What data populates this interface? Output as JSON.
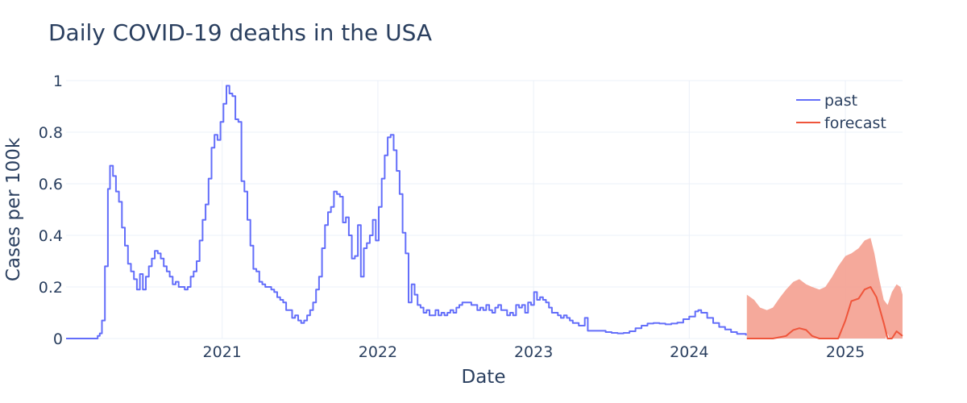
{
  "chart_data": {
    "type": "line",
    "title": "Daily COVID-19 deaths in the USA",
    "xlabel": "Date",
    "ylabel": "Cases per 100k",
    "xlim": [
      "2020-01-01",
      "2025-05-15"
    ],
    "ylim": [
      0,
      1
    ],
    "x_ticks": [
      "2021",
      "2022",
      "2023",
      "2024",
      "2025"
    ],
    "y_ticks": [
      "0",
      "0.2",
      "0.4",
      "0.6",
      "0.8",
      "1"
    ],
    "grid": true,
    "legend_position": "top-right",
    "colors": {
      "past": "#636efa",
      "forecast": "#ef553b",
      "forecast_band": "#f4a090"
    },
    "series": [
      {
        "name": "past",
        "color": "#636efa",
        "points": [
          [
            "2020-01-01",
            0
          ],
          [
            "2020-03-10",
            0
          ],
          [
            "2020-03-15",
            0.01
          ],
          [
            "2020-03-20",
            0.02
          ],
          [
            "2020-03-25",
            0.07
          ],
          [
            "2020-04-01",
            0.28
          ],
          [
            "2020-04-08",
            0.58
          ],
          [
            "2020-04-13",
            0.67
          ],
          [
            "2020-04-20",
            0.63
          ],
          [
            "2020-04-27",
            0.57
          ],
          [
            "2020-05-04",
            0.53
          ],
          [
            "2020-05-11",
            0.43
          ],
          [
            "2020-05-18",
            0.36
          ],
          [
            "2020-05-25",
            0.29
          ],
          [
            "2020-06-01",
            0.26
          ],
          [
            "2020-06-08",
            0.23
          ],
          [
            "2020-06-15",
            0.19
          ],
          [
            "2020-06-22",
            0.25
          ],
          [
            "2020-06-29",
            0.19
          ],
          [
            "2020-07-06",
            0.24
          ],
          [
            "2020-07-13",
            0.28
          ],
          [
            "2020-07-20",
            0.31
          ],
          [
            "2020-07-27",
            0.34
          ],
          [
            "2020-08-03",
            0.33
          ],
          [
            "2020-08-10",
            0.31
          ],
          [
            "2020-08-17",
            0.28
          ],
          [
            "2020-08-24",
            0.26
          ],
          [
            "2020-08-31",
            0.24
          ],
          [
            "2020-09-07",
            0.21
          ],
          [
            "2020-09-14",
            0.22
          ],
          [
            "2020-09-21",
            0.2
          ],
          [
            "2020-09-28",
            0.2
          ],
          [
            "2020-10-05",
            0.19
          ],
          [
            "2020-10-12",
            0.2
          ],
          [
            "2020-10-19",
            0.24
          ],
          [
            "2020-10-26",
            0.26
          ],
          [
            "2020-11-02",
            0.3
          ],
          [
            "2020-11-09",
            0.38
          ],
          [
            "2020-11-16",
            0.46
          ],
          [
            "2020-11-23",
            0.52
          ],
          [
            "2020-11-30",
            0.62
          ],
          [
            "2020-12-07",
            0.74
          ],
          [
            "2020-12-14",
            0.79
          ],
          [
            "2020-12-21",
            0.77
          ],
          [
            "2020-12-28",
            0.84
          ],
          [
            "2021-01-04",
            0.91
          ],
          [
            "2021-01-11",
            0.98
          ],
          [
            "2021-01-18",
            0.95
          ],
          [
            "2021-01-25",
            0.94
          ],
          [
            "2021-02-01",
            0.85
          ],
          [
            "2021-02-08",
            0.84
          ],
          [
            "2021-02-15",
            0.61
          ],
          [
            "2021-02-22",
            0.57
          ],
          [
            "2021-03-01",
            0.46
          ],
          [
            "2021-03-08",
            0.36
          ],
          [
            "2021-03-15",
            0.27
          ],
          [
            "2021-03-22",
            0.26
          ],
          [
            "2021-03-29",
            0.22
          ],
          [
            "2021-04-05",
            0.21
          ],
          [
            "2021-04-12",
            0.2
          ],
          [
            "2021-04-19",
            0.2
          ],
          [
            "2021-04-26",
            0.19
          ],
          [
            "2021-05-03",
            0.18
          ],
          [
            "2021-05-10",
            0.16
          ],
          [
            "2021-05-17",
            0.15
          ],
          [
            "2021-05-24",
            0.14
          ],
          [
            "2021-05-31",
            0.11
          ],
          [
            "2021-06-07",
            0.11
          ],
          [
            "2021-06-14",
            0.08
          ],
          [
            "2021-06-21",
            0.09
          ],
          [
            "2021-06-28",
            0.07
          ],
          [
            "2021-07-05",
            0.06
          ],
          [
            "2021-07-12",
            0.07
          ],
          [
            "2021-07-19",
            0.09
          ],
          [
            "2021-07-26",
            0.11
          ],
          [
            "2021-08-02",
            0.14
          ],
          [
            "2021-08-09",
            0.19
          ],
          [
            "2021-08-16",
            0.24
          ],
          [
            "2021-08-23",
            0.35
          ],
          [
            "2021-08-30",
            0.44
          ],
          [
            "2021-09-06",
            0.49
          ],
          [
            "2021-09-13",
            0.51
          ],
          [
            "2021-09-20",
            0.57
          ],
          [
            "2021-09-27",
            0.56
          ],
          [
            "2021-10-04",
            0.55
          ],
          [
            "2021-10-11",
            0.45
          ],
          [
            "2021-10-18",
            0.47
          ],
          [
            "2021-10-25",
            0.4
          ],
          [
            "2021-11-01",
            0.31
          ],
          [
            "2021-11-08",
            0.32
          ],
          [
            "2021-11-15",
            0.44
          ],
          [
            "2021-11-22",
            0.24
          ],
          [
            "2021-11-29",
            0.35
          ],
          [
            "2021-12-06",
            0.37
          ],
          [
            "2021-12-13",
            0.4
          ],
          [
            "2021-12-20",
            0.46
          ],
          [
            "2021-12-27",
            0.38
          ],
          [
            "2022-01-03",
            0.51
          ],
          [
            "2022-01-10",
            0.62
          ],
          [
            "2022-01-17",
            0.71
          ],
          [
            "2022-01-24",
            0.78
          ],
          [
            "2022-01-31",
            0.79
          ],
          [
            "2022-02-07",
            0.73
          ],
          [
            "2022-02-14",
            0.65
          ],
          [
            "2022-02-21",
            0.56
          ],
          [
            "2022-02-28",
            0.41
          ],
          [
            "2022-03-07",
            0.33
          ],
          [
            "2022-03-14",
            0.14
          ],
          [
            "2022-03-21",
            0.21
          ],
          [
            "2022-03-28",
            0.17
          ],
          [
            "2022-04-04",
            0.13
          ],
          [
            "2022-04-11",
            0.12
          ],
          [
            "2022-04-18",
            0.1
          ],
          [
            "2022-04-25",
            0.11
          ],
          [
            "2022-05-02",
            0.09
          ],
          [
            "2022-05-09",
            0.09
          ],
          [
            "2022-05-16",
            0.11
          ],
          [
            "2022-05-23",
            0.09
          ],
          [
            "2022-05-30",
            0.1
          ],
          [
            "2022-06-06",
            0.09
          ],
          [
            "2022-06-13",
            0.1
          ],
          [
            "2022-06-20",
            0.11
          ],
          [
            "2022-06-27",
            0.1
          ],
          [
            "2022-07-04",
            0.12
          ],
          [
            "2022-07-11",
            0.13
          ],
          [
            "2022-07-18",
            0.14
          ],
          [
            "2022-07-25",
            0.14
          ],
          [
            "2022-08-01",
            0.14
          ],
          [
            "2022-08-08",
            0.13
          ],
          [
            "2022-08-15",
            0.13
          ],
          [
            "2022-08-22",
            0.11
          ],
          [
            "2022-08-29",
            0.12
          ],
          [
            "2022-09-05",
            0.11
          ],
          [
            "2022-09-12",
            0.13
          ],
          [
            "2022-09-19",
            0.11
          ],
          [
            "2022-09-26",
            0.1
          ],
          [
            "2022-10-03",
            0.12
          ],
          [
            "2022-10-10",
            0.13
          ],
          [
            "2022-10-17",
            0.11
          ],
          [
            "2022-10-24",
            0.11
          ],
          [
            "2022-10-31",
            0.09
          ],
          [
            "2022-11-07",
            0.1
          ],
          [
            "2022-11-14",
            0.09
          ],
          [
            "2022-11-21",
            0.13
          ],
          [
            "2022-11-28",
            0.12
          ],
          [
            "2022-12-05",
            0.13
          ],
          [
            "2022-12-12",
            0.1
          ],
          [
            "2022-12-19",
            0.14
          ],
          [
            "2022-12-26",
            0.13
          ],
          [
            "2023-01-02",
            0.18
          ],
          [
            "2023-01-09",
            0.15
          ],
          [
            "2023-01-16",
            0.16
          ],
          [
            "2023-01-23",
            0.15
          ],
          [
            "2023-01-30",
            0.14
          ],
          [
            "2023-02-06",
            0.12
          ],
          [
            "2023-02-13",
            0.1
          ],
          [
            "2023-02-20",
            0.1
          ],
          [
            "2023-02-27",
            0.09
          ],
          [
            "2023-03-06",
            0.08
          ],
          [
            "2023-03-13",
            0.09
          ],
          [
            "2023-03-20",
            0.08
          ],
          [
            "2023-03-27",
            0.07
          ],
          [
            "2023-04-03",
            0.06
          ],
          [
            "2023-04-10",
            0.06
          ],
          [
            "2023-04-17",
            0.05
          ],
          [
            "2023-04-24",
            0.05
          ],
          [
            "2023-05-01",
            0.08
          ],
          [
            "2023-05-08",
            0.03
          ],
          [
            "2023-05-22",
            0.03
          ],
          [
            "2023-06-05",
            0.03
          ],
          [
            "2023-06-19",
            0.025
          ],
          [
            "2023-07-03",
            0.022
          ],
          [
            "2023-07-17",
            0.02
          ],
          [
            "2023-07-31",
            0.022
          ],
          [
            "2023-08-14",
            0.028
          ],
          [
            "2023-08-28",
            0.04
          ],
          [
            "2023-09-11",
            0.05
          ],
          [
            "2023-09-25",
            0.058
          ],
          [
            "2023-10-09",
            0.06
          ],
          [
            "2023-10-23",
            0.058
          ],
          [
            "2023-11-06",
            0.055
          ],
          [
            "2023-11-20",
            0.058
          ],
          [
            "2023-12-04",
            0.062
          ],
          [
            "2023-12-18",
            0.075
          ],
          [
            "2024-01-01",
            0.085
          ],
          [
            "2024-01-15",
            0.105
          ],
          [
            "2024-01-22",
            0.11
          ],
          [
            "2024-01-29",
            0.1
          ],
          [
            "2024-02-12",
            0.08
          ],
          [
            "2024-02-26",
            0.06
          ],
          [
            "2024-03-11",
            0.045
          ],
          [
            "2024-03-25",
            0.035
          ],
          [
            "2024-04-08",
            0.025
          ],
          [
            "2024-04-22",
            0.018
          ],
          [
            "2024-05-13",
            0.012
          ]
        ]
      },
      {
        "name": "forecast",
        "color": "#ef553b",
        "points": [
          [
            "2024-05-15",
            0
          ],
          [
            "2024-07-15",
            0
          ],
          [
            "2024-08-15",
            0.01
          ],
          [
            "2024-09-01",
            0.033
          ],
          [
            "2024-09-15",
            0.04
          ],
          [
            "2024-10-01",
            0.033
          ],
          [
            "2024-10-15",
            0.01
          ],
          [
            "2024-11-01",
            0
          ],
          [
            "2024-12-15",
            0
          ],
          [
            "2025-01-01",
            0.07
          ],
          [
            "2025-01-15",
            0.145
          ],
          [
            "2025-02-01",
            0.155
          ],
          [
            "2025-02-15",
            0.19
          ],
          [
            "2025-03-01",
            0.2
          ],
          [
            "2025-03-15",
            0.16
          ],
          [
            "2025-04-01",
            0.06
          ],
          [
            "2025-04-10",
            0
          ],
          [
            "2025-04-20",
            0
          ],
          [
            "2025-05-01",
            0.028
          ],
          [
            "2025-05-15",
            0.01
          ]
        ]
      }
    ],
    "forecast_band": {
      "upper": [
        [
          "2024-05-15",
          0.17
        ],
        [
          "2024-06-01",
          0.15
        ],
        [
          "2024-06-15",
          0.12
        ],
        [
          "2024-07-01",
          0.11
        ],
        [
          "2024-07-15",
          0.12
        ],
        [
          "2024-08-01",
          0.16
        ],
        [
          "2024-08-15",
          0.19
        ],
        [
          "2024-09-01",
          0.22
        ],
        [
          "2024-09-15",
          0.23
        ],
        [
          "2024-10-01",
          0.21
        ],
        [
          "2024-10-15",
          0.2
        ],
        [
          "2024-11-01",
          0.19
        ],
        [
          "2024-11-15",
          0.2
        ],
        [
          "2024-12-01",
          0.24
        ],
        [
          "2024-12-15",
          0.28
        ],
        [
          "2025-01-01",
          0.32
        ],
        [
          "2025-01-15",
          0.33
        ],
        [
          "2025-02-01",
          0.35
        ],
        [
          "2025-02-15",
          0.38
        ],
        [
          "2025-03-01",
          0.39
        ],
        [
          "2025-03-10",
          0.33
        ],
        [
          "2025-03-20",
          0.24
        ],
        [
          "2025-04-01",
          0.15
        ],
        [
          "2025-04-10",
          0.13
        ],
        [
          "2025-04-20",
          0.18
        ],
        [
          "2025-05-01",
          0.21
        ],
        [
          "2025-05-10",
          0.2
        ],
        [
          "2025-05-15",
          0.17
        ]
      ],
      "lower": [
        [
          "2024-05-15",
          0
        ],
        [
          "2025-04-05",
          0
        ],
        [
          "2025-04-10",
          0.02
        ],
        [
          "2025-04-15",
          0
        ],
        [
          "2025-05-15",
          0
        ]
      ]
    }
  }
}
